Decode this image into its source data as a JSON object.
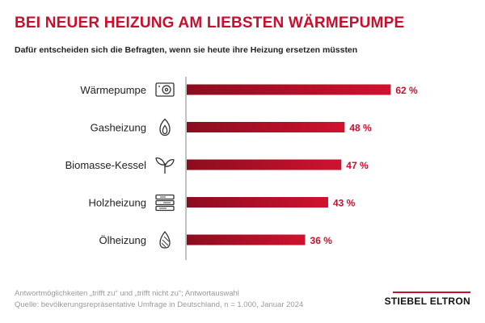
{
  "header": {
    "title": "BEI NEUER HEIZUNG AM LIEBSTEN WÄRMEPUMPE",
    "subtitle": "Dafür entscheiden sich die Befragten, wenn sie heute ihre Heizung ersetzen müssten"
  },
  "chart_data": {
    "type": "bar",
    "orientation": "horizontal",
    "categories": [
      "Wärmepumpe",
      "Gasheizung",
      "Biomasse-Kessel",
      "Holzheizung",
      "Ölheizung"
    ],
    "values": [
      62,
      48,
      47,
      43,
      36
    ],
    "value_labels": [
      "62 %",
      "48 %",
      "47 %",
      "43 %",
      "36 %"
    ],
    "icons": [
      "heat-pump-icon",
      "gas-flame-icon",
      "plant-icon",
      "wood-logs-icon",
      "oil-drop-icon"
    ],
    "xlim": [
      0,
      100
    ],
    "grid": false,
    "colors": {
      "bar_dark": "#8b0d1f",
      "bar_light": "#d0122f",
      "label": "#c8102e"
    }
  },
  "footer": {
    "note": "Antwortmöglichkeiten „trifft zu“ und „trifft nicht zu“; Antwortauswahl",
    "source": "Quelle: bevölkerungsrepräsentative Umfrage in Deutschland, n = 1.000, Januar 2024",
    "brand": "STIEBEL ELTRON"
  }
}
